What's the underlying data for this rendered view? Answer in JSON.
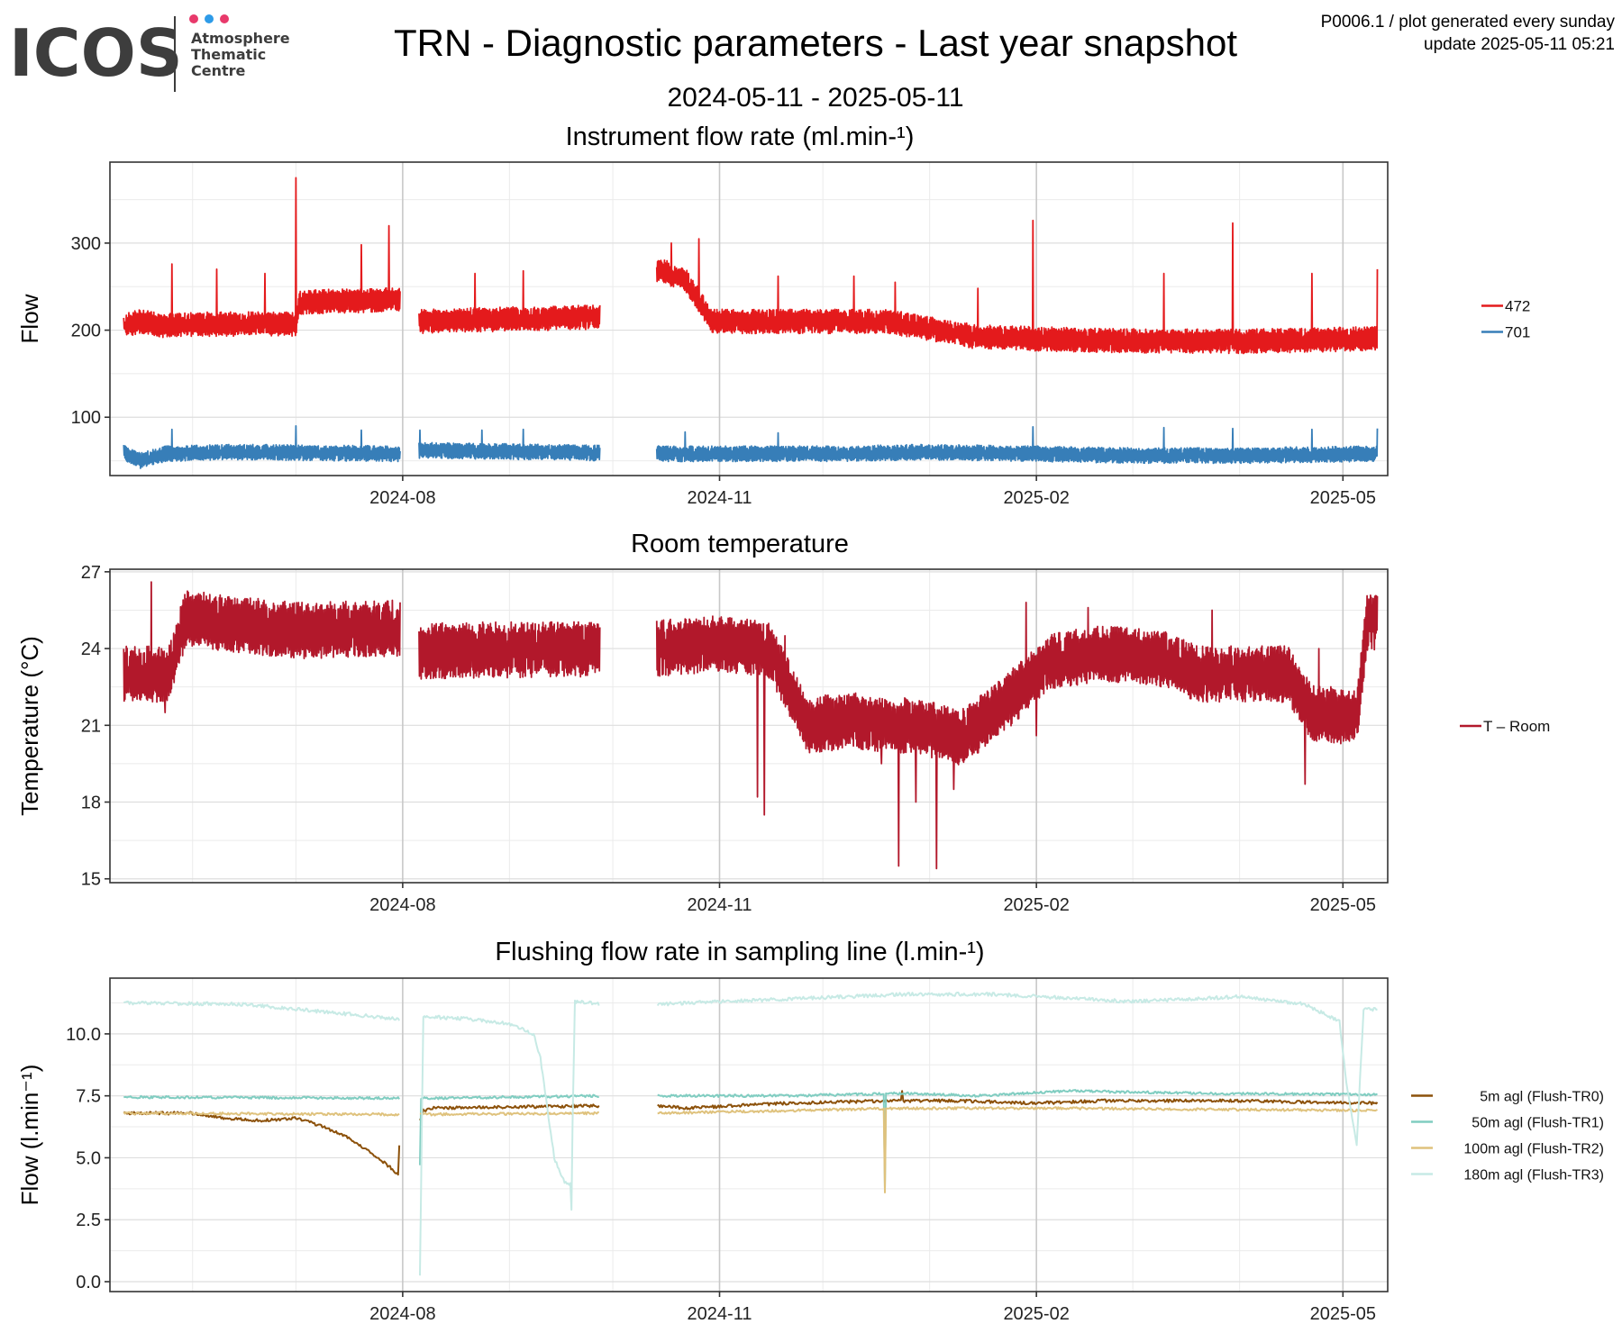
{
  "header": {
    "logo": {
      "word": "ICOS",
      "lines": [
        "Atmosphere",
        "Thematic",
        "Centre"
      ],
      "dot_colors": [
        "#e8396b",
        "#2e9be8",
        "#e8396b"
      ]
    },
    "title": "TRN - Diagnostic parameters - Last year snapshot",
    "date_range": "2024-05-11 - 2025-05-11",
    "meta_line1": "P0006.1 / plot generated every sunday",
    "meta_line2": "update  2025-05-11 05:21"
  },
  "chart_data": [
    {
      "type": "line",
      "title": "Instrument flow rate (ml.min-¹)",
      "xlabel": "",
      "ylabel": "Flow",
      "xlim": [
        "2024-05-08",
        "2025-05-14"
      ],
      "ylim": [
        33,
        393
      ],
      "x_ticks": [
        "2024-08-01",
        "2024-11-01",
        "2025-02-01",
        "2025-05-01"
      ],
      "x_tick_labels": [
        "2024-08",
        "2024-11",
        "2025-02",
        "2025-05"
      ],
      "y_ticks": [
        100,
        200,
        300
      ],
      "y_tick_labels": [
        "100",
        "200",
        "300"
      ],
      "grid": true,
      "legend": "right",
      "series": [
        {
          "name": "472",
          "color": "#e41a1c",
          "base": 0,
          "noise": 1,
          "band": 1,
          "x": [
            "2024-05-12",
            "2024-05-17",
            "2024-05-24",
            "2024-06-01",
            "2024-06-15",
            "2024-07-01",
            "2024-07-02",
            "2024-07-31",
            "2024-08-06",
            "2024-08-24",
            "2024-09-27",
            "2024-10-14",
            "2024-10-22",
            "2024-10-30",
            "2024-11-20",
            "2024-12-20",
            "2025-01-15",
            "2025-02-20",
            "2025-04-01",
            "2025-05-08",
            "2025-05-10",
            "2025-05-11"
          ],
          "y": [
            205,
            210,
            205,
            207,
            207,
            207,
            232,
            235,
            210,
            212,
            215,
            270,
            258,
            210,
            210,
            210,
            192,
            188,
            187,
            190,
            190,
            190
          ],
          "gaps": [
            [
              "2024-07-31",
              "2024-08-06"
            ],
            [
              "2024-09-27",
              "2024-10-14"
            ]
          ],
          "spikes": [
            [
              "2024-05-26",
              276
            ],
            [
              "2024-06-08",
              270
            ],
            [
              "2024-06-22",
              265
            ],
            [
              "2024-07-01",
              375
            ],
            [
              "2024-07-20",
              298
            ],
            [
              "2024-07-28",
              320
            ],
            [
              "2024-08-22",
              265
            ],
            [
              "2024-09-05",
              268
            ],
            [
              "2024-10-18",
              300
            ],
            [
              "2024-10-26",
              305
            ],
            [
              "2024-11-18",
              262
            ],
            [
              "2024-12-10",
              262
            ],
            [
              "2024-12-22",
              255
            ],
            [
              "2025-01-15",
              248
            ],
            [
              "2025-01-31",
              326
            ],
            [
              "2025-03-10",
              265
            ],
            [
              "2025-03-30",
              323
            ],
            [
              "2025-04-22",
              265
            ],
            [
              "2025-05-11",
              270
            ]
          ]
        },
        {
          "name": "701",
          "color": "#377eb8",
          "base": 0,
          "noise": 1,
          "band": 1,
          "x": [
            "2024-05-12",
            "2024-05-17",
            "2024-05-24",
            "2024-06-15",
            "2024-07-31",
            "2024-08-06",
            "2024-09-27",
            "2024-10-14",
            "2024-11-01",
            "2024-12-01",
            "2025-01-01",
            "2025-02-01",
            "2025-03-01",
            "2025-04-01",
            "2025-05-11"
          ],
          "y": [
            60,
            50,
            58,
            60,
            58,
            62,
            59,
            58,
            58,
            58,
            60,
            58,
            56,
            56,
            58
          ],
          "gaps": [
            [
              "2024-07-31",
              "2024-08-06"
            ],
            [
              "2024-09-27",
              "2024-10-14"
            ]
          ],
          "spikes": [
            [
              "2024-05-26",
              86
            ],
            [
              "2024-07-01",
              90
            ],
            [
              "2024-07-20",
              85
            ],
            [
              "2024-08-06",
              85
            ],
            [
              "2024-08-24",
              85
            ],
            [
              "2024-09-05",
              86
            ],
            [
              "2024-10-22",
              83
            ],
            [
              "2024-11-18",
              82
            ],
            [
              "2025-01-31",
              89
            ],
            [
              "2025-03-10",
              88
            ],
            [
              "2025-03-30",
              87
            ],
            [
              "2025-04-22",
              86
            ],
            [
              "2025-05-11",
              87
            ]
          ]
        }
      ]
    },
    {
      "type": "line",
      "title": "Room temperature",
      "xlabel": "",
      "ylabel": "Temperature (°C)",
      "xlim": [
        "2024-05-08",
        "2025-05-14"
      ],
      "ylim": [
        14.85,
        27.1
      ],
      "x_ticks": [
        "2024-08-01",
        "2024-11-01",
        "2025-02-01",
        "2025-05-01"
      ],
      "x_tick_labels": [
        "2024-08",
        "2024-11",
        "2025-02",
        "2025-05"
      ],
      "y_ticks": [
        15,
        18,
        21,
        24,
        27
      ],
      "y_tick_labels": [
        "15",
        "18",
        "21",
        "24",
        "27"
      ],
      "grid": true,
      "legend": "right",
      "series": [
        {
          "name": "T – Room",
          "color": "#b2182b",
          "base": 0,
          "noise": 1,
          "band": 1,
          "x": [
            "2024-05-12",
            "2024-05-25",
            "2024-05-30",
            "2024-06-10",
            "2024-07-01",
            "2024-07-31",
            "2024-08-06",
            "2024-09-27",
            "2024-10-14",
            "2024-11-01",
            "2024-11-15",
            "2024-11-23",
            "2024-11-26",
            "2024-12-10",
            "2024-12-20",
            "2024-12-28",
            "2025-01-10",
            "2025-01-20",
            "2025-02-05",
            "2025-02-20",
            "2025-03-10",
            "2025-03-20",
            "2025-04-15",
            "2025-04-22",
            "2025-05-05",
            "2025-05-08",
            "2025-05-11"
          ],
          "y": [
            23.0,
            23.0,
            25.2,
            25.0,
            24.7,
            24.8,
            23.9,
            24.0,
            24.0,
            24.2,
            24.0,
            22.0,
            21.0,
            21.2,
            21.0,
            21.0,
            20.5,
            21.5,
            23.5,
            23.8,
            23.6,
            23.0,
            23.0,
            21.5,
            21.3,
            25.0,
            25.0
          ],
          "gaps": [
            [
              "2024-07-31",
              "2024-08-06"
            ],
            [
              "2024-09-27",
              "2024-10-14"
            ]
          ],
          "spikes": [
            [
              "2024-05-20",
              26.6
            ],
            [
              "2024-05-24",
              21.5
            ],
            [
              "2024-11-12",
              18.2
            ],
            [
              "2024-11-14",
              17.5
            ],
            [
              "2024-11-20",
              24.5
            ],
            [
              "2024-12-18",
              19.5
            ],
            [
              "2024-12-23",
              15.5
            ],
            [
              "2024-12-28",
              18.0
            ],
            [
              "2025-01-03",
              15.4
            ],
            [
              "2025-01-08",
              18.5
            ],
            [
              "2025-01-29",
              25.8
            ],
            [
              "2025-02-01",
              20.6
            ],
            [
              "2025-02-16",
              25.6
            ],
            [
              "2025-03-24",
              25.5
            ],
            [
              "2025-04-20",
              18.7
            ],
            [
              "2025-04-24",
              24.0
            ]
          ]
        }
      ]
    },
    {
      "type": "line",
      "title": "Flushing flow rate in sampling line (l.min-¹)",
      "xlabel": "",
      "ylabel": "Flow (l.min⁻¹)",
      "xlim": [
        "2024-05-08",
        "2025-05-14"
      ],
      "ylim": [
        -0.4,
        12.25
      ],
      "x_ticks": [
        "2024-08-01",
        "2024-11-01",
        "2025-02-01",
        "2025-05-01"
      ],
      "x_tick_labels": [
        "2024-08",
        "2024-11",
        "2025-02",
        "2025-05"
      ],
      "y_ticks": [
        0,
        2.5,
        5,
        7.5,
        10
      ],
      "y_tick_labels": [
        "0.0",
        "2.5",
        "5.0",
        "7.5",
        "10.0"
      ],
      "grid": true,
      "legend": "right",
      "series": [
        {
          "name": "5m agl (Flush-TR0)",
          "color": "#8c510a",
          "base": 0,
          "noise": 0,
          "band": 0,
          "x": [
            "2024-05-12",
            "2024-06-01",
            "2024-06-10",
            "2024-06-20",
            "2024-07-01",
            "2024-07-08",
            "2024-07-15",
            "2024-07-25",
            "2024-07-31",
            "2024-08-06",
            "2024-08-07",
            "2024-08-09",
            "2024-09-27",
            "2024-10-14",
            "2024-10-22",
            "2024-11-05",
            "2024-11-20",
            "2024-12-20",
            "2025-01-10",
            "2025-02-01",
            "2025-02-20",
            "2025-04-01",
            "2025-05-11"
          ],
          "y": [
            6.8,
            6.8,
            6.6,
            6.5,
            6.6,
            6.3,
            5.9,
            5.0,
            4.3,
            6.5,
            6.9,
            7.0,
            7.1,
            7.1,
            7.0,
            7.1,
            7.2,
            7.3,
            7.3,
            7.2,
            7.3,
            7.3,
            7.2
          ],
          "gaps": [
            [
              "2024-07-31",
              "2024-08-06"
            ],
            [
              "2024-09-27",
              "2024-10-14"
            ]
          ],
          "spikes": [
            [
              "2024-07-31",
              5.5
            ],
            [
              "2024-12-24",
              7.7
            ]
          ]
        },
        {
          "name": "50m agl (Flush-TR1)",
          "color": "#80cdc1",
          "base": 0,
          "noise": 0,
          "band": 0,
          "x": [
            "2024-05-12",
            "2024-07-31",
            "2024-08-06",
            "2024-09-27",
            "2024-10-14",
            "2024-11-20",
            "2024-12-25",
            "2025-01-15",
            "2025-02-10",
            "2025-03-20",
            "2025-05-11"
          ],
          "y": [
            7.45,
            7.4,
            7.4,
            7.5,
            7.5,
            7.5,
            7.6,
            7.5,
            7.7,
            7.6,
            7.55
          ],
          "gaps": [
            [
              "2024-07-31",
              "2024-08-06"
            ],
            [
              "2024-09-27",
              "2024-10-14"
            ]
          ],
          "spikes": [
            [
              "2024-08-06",
              4.7
            ],
            [
              "2024-12-19",
              3.7
            ]
          ]
        },
        {
          "name": "100m agl (Flush-TR2)",
          "color": "#dfc27d",
          "base": 0,
          "noise": 0,
          "band": 0,
          "x": [
            "2024-05-12",
            "2024-07-31",
            "2024-08-06",
            "2024-09-27",
            "2024-10-14",
            "2024-11-20",
            "2024-12-25",
            "2025-02-10",
            "2025-05-11"
          ],
          "y": [
            6.8,
            6.75,
            6.75,
            6.8,
            6.8,
            6.9,
            7.0,
            7.0,
            6.9
          ],
          "gaps": [
            [
              "2024-07-31",
              "2024-08-06"
            ],
            [
              "2024-09-27",
              "2024-10-14"
            ]
          ],
          "spikes": [
            [
              "2024-12-19",
              3.6
            ]
          ]
        },
        {
          "name": "180m agl (Flush-TR3)",
          "color": "#c7eae5",
          "base": 0,
          "noise": 0,
          "band": 0,
          "x": [
            "2024-05-12",
            "2024-06-15",
            "2024-07-01",
            "2024-07-31",
            "2024-08-06",
            "2024-08-07",
            "2024-08-20",
            "2024-09-01",
            "2024-09-08",
            "2024-09-10",
            "2024-09-14",
            "2024-09-17",
            "2024-09-19",
            "2024-09-20",
            "2024-09-22",
            "2024-09-27",
            "2024-10-14",
            "2024-11-01",
            "2024-11-20",
            "2024-12-25",
            "2025-01-20",
            "2025-03-01",
            "2025-04-01",
            "2025-04-20",
            "2025-04-30",
            "2025-05-02",
            "2025-05-05",
            "2025-05-07",
            "2025-05-11"
          ],
          "y": [
            11.25,
            11.2,
            11.0,
            10.6,
            0.3,
            10.7,
            10.6,
            10.4,
            10.0,
            9.0,
            5.0,
            4.0,
            3.9,
            11.3,
            11.3,
            11.2,
            11.2,
            11.3,
            11.4,
            11.6,
            11.6,
            11.3,
            11.5,
            11.2,
            10.5,
            8.0,
            5.5,
            11.0,
            11.0
          ],
          "gaps": [
            [
              "2024-07-31",
              "2024-08-06"
            ],
            [
              "2024-09-27",
              "2024-10-14"
            ]
          ],
          "spikes": [
            [
              "2024-09-19",
              2.9
            ],
            [
              "2024-12-19",
              11.5
            ]
          ]
        }
      ]
    }
  ]
}
